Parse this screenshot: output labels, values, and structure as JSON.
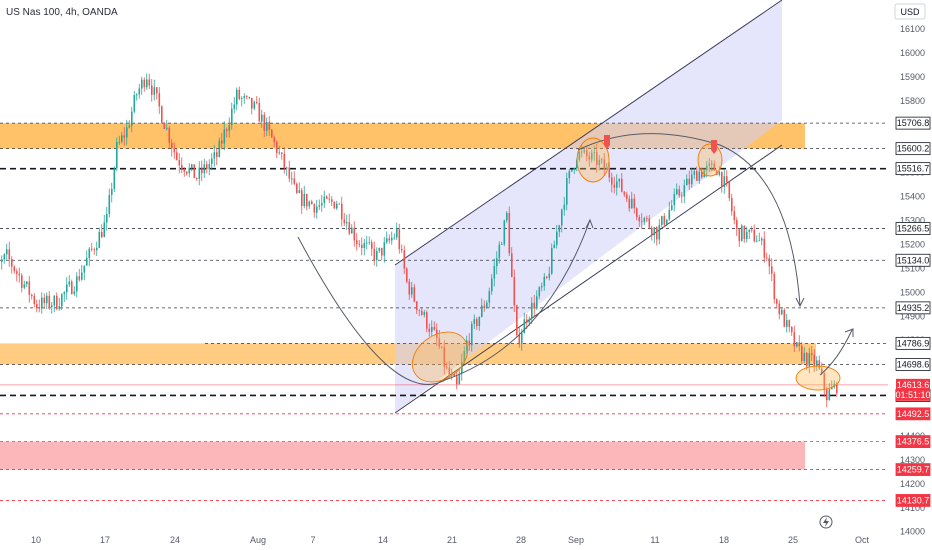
{
  "header": {
    "title": "US Nas 100, 4h, OANDA"
  },
  "currency": "USD",
  "colors": {
    "up": "#26a69a",
    "down": "#ef5350",
    "supply_zone": "#ffb74d",
    "demand_zone": "#f77c80",
    "channel_fill": "#cfcffa",
    "channel_line": "#3d3f5b"
  },
  "chart_data": {
    "type": "candlestick",
    "y_axis_ticks": [
      16100,
      16000,
      15900,
      15800,
      15700,
      15600,
      15500,
      15400,
      15300,
      15200,
      15100,
      15000,
      14900,
      14800,
      14700,
      14600,
      14500,
      14400,
      14300,
      14200,
      14100,
      14000
    ],
    "x_axis_ticks": [
      "10",
      "17",
      "24",
      "Aug",
      "7",
      "14",
      "21",
      "28",
      "Sep",
      "11",
      "18",
      "25",
      "Oct"
    ],
    "levels": [
      {
        "value": 15706.8,
        "style": "dashed",
        "color": "#363a45",
        "label_bg": "#ffffff"
      },
      {
        "value": 15600.2,
        "style": "dashed",
        "color": "#363a45",
        "label_bg": "#ffffff"
      },
      {
        "value": 15516.7,
        "style": "thick-dashed",
        "color": "#131722",
        "label_bg": "#ffffff"
      },
      {
        "value": 15266.5,
        "style": "dashed",
        "color": "#363a45",
        "label_bg": "#ffffff"
      },
      {
        "value": 15134.0,
        "style": "dashed",
        "color": "#363a45",
        "label_bg": "#ffffff"
      },
      {
        "value": 14935.2,
        "style": "dashed",
        "color": "#363a45",
        "label_bg": "#ffffff"
      },
      {
        "value": 14786.9,
        "style": "dashed",
        "color": "#363a45",
        "label_bg": "#ffffff"
      },
      {
        "value": 14698.6,
        "style": "dashed",
        "color": "#363a45",
        "label_bg": "#ffffff"
      },
      {
        "value": 14569.3,
        "style": "thick-dashed",
        "color": "#131722",
        "label_bg": "#ffffff"
      },
      {
        "value": 14492.5,
        "style": "dashed",
        "color": "#f23645",
        "label_bg": "#f23645"
      },
      {
        "value": 14376.5,
        "style": "dashed",
        "color": "#f23645",
        "label_bg": "#f23645"
      },
      {
        "value": 14259.7,
        "style": "dashed",
        "color": "#f23645",
        "label_bg": "#f23645"
      },
      {
        "value": 14130.7,
        "style": "dashed",
        "color": "#f23645",
        "label_bg": "#f23645"
      }
    ],
    "current_price": {
      "value": 14613.6,
      "countdown": "01:51:10"
    },
    "zones": [
      {
        "name": "supply",
        "from": 15600.2,
        "to": 15706.8
      },
      {
        "name": "support",
        "from": 14698.6,
        "to": 14786.9
      },
      {
        "name": "demand",
        "from": 14259.7,
        "to": 14376.5
      }
    ],
    "trend_path": [
      [
        "Jul 5",
        15050
      ],
      [
        "Jul 7",
        15150
      ],
      [
        "Jul 10",
        14950
      ],
      [
        "Jul 12",
        14960
      ],
      [
        "Jul 14",
        15050
      ],
      [
        "Jul 17",
        15300
      ],
      [
        "Jul 18",
        15600
      ],
      [
        "Jul 19",
        15680
      ],
      [
        "Jul 20",
        15830
      ],
      [
        "Jul 21",
        15910
      ],
      [
        "Jul 22",
        15800
      ],
      [
        "Jul 24",
        15560
      ],
      [
        "Jul 26",
        15480
      ],
      [
        "Jul 28",
        15570
      ],
      [
        "Jul 30",
        15820
      ],
      [
        "Aug 1",
        15760
      ],
      [
        "Aug 3",
        15600
      ],
      [
        "Aug 5",
        15400
      ],
      [
        "Aug 7",
        15360
      ],
      [
        "Aug 9",
        15380
      ],
      [
        "Aug 11",
        15220
      ],
      [
        "Aug 13",
        15150
      ],
      [
        "Aug 15",
        15250
      ],
      [
        "Aug 16",
        15040
      ],
      [
        "Aug 17",
        14950
      ],
      [
        "Aug 19",
        14800
      ],
      [
        "Aug 20",
        14670
      ],
      [
        "Aug 21",
        14600
      ],
      [
        "Aug 22",
        14790
      ],
      [
        "Aug 24",
        14970
      ],
      [
        "Aug 26",
        15320
      ],
      [
        "Aug 27",
        14790
      ],
      [
        "Aug 28",
        14900
      ],
      [
        "Aug 30",
        15050
      ],
      [
        "Sep 1",
        15450
      ],
      [
        "Sep 2",
        15580
      ],
      [
        "Sep 4",
        15550
      ],
      [
        "Sep 6",
        15460
      ],
      [
        "Sep 8",
        15340
      ],
      [
        "Sep 10",
        15250
      ],
      [
        "Sep 12",
        15400
      ],
      [
        "Sep 14",
        15500
      ],
      [
        "Sep 16",
        15520
      ],
      [
        "Sep 17",
        15430
      ],
      [
        "Sep 18",
        15250
      ],
      [
        "Sep 20",
        15230
      ],
      [
        "Sep 21",
        15160
      ],
      [
        "Sep 22",
        14950
      ],
      [
        "Sep 24",
        14760
      ],
      [
        "Sep 25",
        14720
      ],
      [
        "Sep 26",
        14700
      ],
      [
        "Sep 27",
        14570
      ],
      [
        "Sep 28",
        14613.6
      ]
    ]
  }
}
